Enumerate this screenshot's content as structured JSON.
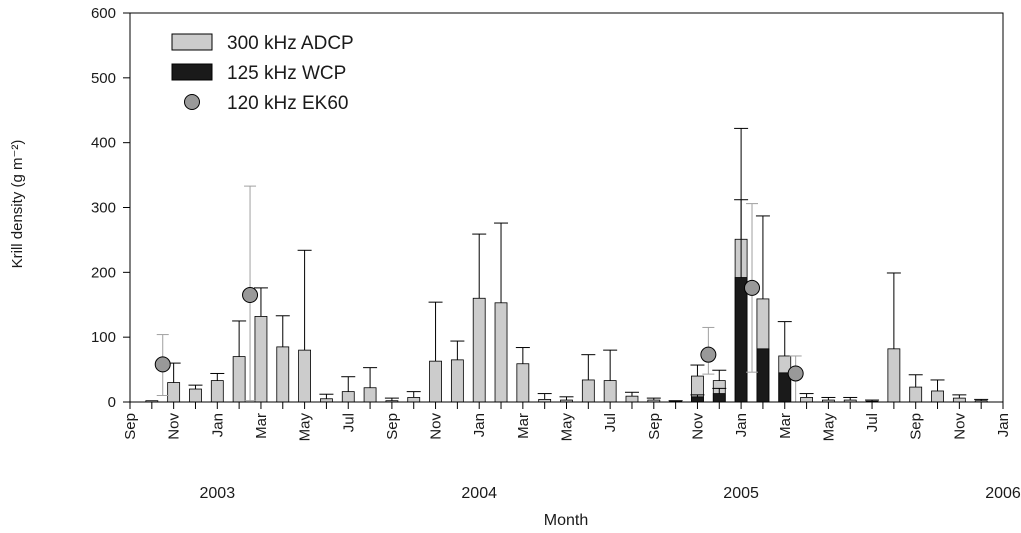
{
  "chart_data": {
    "type": "bar",
    "ylabel": "Krill density (g m⁻²)",
    "xlabel": "Month",
    "ylim": [
      0,
      600
    ],
    "yticks": [
      0,
      100,
      200,
      300,
      400,
      500,
      600
    ],
    "x_ticks": [
      {
        "slot": 0,
        "label": "Sep"
      },
      {
        "slot": 2,
        "label": "Nov"
      },
      {
        "slot": 4,
        "label": "Jan"
      },
      {
        "slot": 6,
        "label": "Mar"
      },
      {
        "slot": 8,
        "label": "May"
      },
      {
        "slot": 10,
        "label": "Jul"
      },
      {
        "slot": 12,
        "label": "Sep"
      },
      {
        "slot": 14,
        "label": "Nov"
      },
      {
        "slot": 16,
        "label": "Jan"
      },
      {
        "slot": 18,
        "label": "Mar"
      },
      {
        "slot": 20,
        "label": "May"
      },
      {
        "slot": 22,
        "label": "Jul"
      },
      {
        "slot": 24,
        "label": "Sep"
      },
      {
        "slot": 26,
        "label": "Nov"
      },
      {
        "slot": 28,
        "label": "Jan"
      },
      {
        "slot": 30,
        "label": "Mar"
      },
      {
        "slot": 32,
        "label": "May"
      },
      {
        "slot": 34,
        "label": "Jul"
      },
      {
        "slot": 36,
        "label": "Sep"
      },
      {
        "slot": 38,
        "label": "Nov"
      },
      {
        "slot": 40,
        "label": "Jan"
      }
    ],
    "years": [
      {
        "slot": 4,
        "label": "2003"
      },
      {
        "slot": 16,
        "label": "2004"
      },
      {
        "slot": 28,
        "label": "2005"
      },
      {
        "slot": 40,
        "label": "2006"
      }
    ],
    "legend": {
      "position": "top-left",
      "items": [
        {
          "label": "300 kHz ADCP",
          "kind": "bar",
          "color": "#cccccc"
        },
        {
          "label": "125 kHz WCP",
          "kind": "bar",
          "color": "#1a1a1a"
        },
        {
          "label": "120 kHz EK60",
          "kind": "circle",
          "color": "#999999"
        }
      ]
    },
    "series": [
      {
        "name": "300 kHz ADCP",
        "color": "#cccccc",
        "points": [
          {
            "slot": 1,
            "value": 2,
            "err": 0
          },
          {
            "slot": 2,
            "value": 30,
            "err": 30
          },
          {
            "slot": 3,
            "value": 20,
            "err": 6
          },
          {
            "slot": 4,
            "value": 33,
            "err": 11
          },
          {
            "slot": 5,
            "value": 70,
            "err": 55
          },
          {
            "slot": 6,
            "value": 132,
            "err": 44
          },
          {
            "slot": 7,
            "value": 85,
            "err": 48
          },
          {
            "slot": 8,
            "value": 80,
            "err": 154
          },
          {
            "slot": 9,
            "value": 5,
            "err": 7
          },
          {
            "slot": 10,
            "value": 16,
            "err": 23
          },
          {
            "slot": 11,
            "value": 22,
            "err": 31
          },
          {
            "slot": 12,
            "value": 2,
            "err": 4
          },
          {
            "slot": 13,
            "value": 7,
            "err": 9
          },
          {
            "slot": 14,
            "value": 63,
            "err": 91
          },
          {
            "slot": 15,
            "value": 65,
            "err": 29
          },
          {
            "slot": 16,
            "value": 160,
            "err": 99
          },
          {
            "slot": 17,
            "value": 153,
            "err": 123
          },
          {
            "slot": 18,
            "value": 59,
            "err": 25
          },
          {
            "slot": 19,
            "value": 4,
            "err": 9
          },
          {
            "slot": 20,
            "value": 3,
            "err": 5
          },
          {
            "slot": 21,
            "value": 34,
            "err": 39
          },
          {
            "slot": 22,
            "value": 33,
            "err": 47
          },
          {
            "slot": 23,
            "value": 9,
            "err": 6
          },
          {
            "slot": 24,
            "value": 3,
            "err": 3
          },
          {
            "slot": 25,
            "value": 1,
            "err": 1
          },
          {
            "slot": 26,
            "value": 40,
            "err": 17
          },
          {
            "slot": 27,
            "value": 33,
            "err": 16
          },
          {
            "slot": 28,
            "value": 251,
            "err": 171
          },
          {
            "slot": 29,
            "value": 159,
            "err": 128
          },
          {
            "slot": 30,
            "value": 71,
            "err": 53
          },
          {
            "slot": 31,
            "value": 7,
            "err": 6
          },
          {
            "slot": 32,
            "value": 3,
            "err": 4
          },
          {
            "slot": 33,
            "value": 3,
            "err": 4
          },
          {
            "slot": 34,
            "value": 1,
            "err": 2
          },
          {
            "slot": 35,
            "value": 82,
            "err": 117
          },
          {
            "slot": 36,
            "value": 23,
            "err": 19
          },
          {
            "slot": 37,
            "value": 17,
            "err": 17
          },
          {
            "slot": 38,
            "value": 6,
            "err": 5
          },
          {
            "slot": 39,
            "value": 2,
            "err": 2
          }
        ]
      },
      {
        "name": "125 kHz WCP",
        "color": "#1a1a1a",
        "points": [
          {
            "slot": 25,
            "value": 1,
            "err": 0
          },
          {
            "slot": 26,
            "value": 8,
            "err": 3
          },
          {
            "slot": 27,
            "value": 13,
            "err": 8
          },
          {
            "slot": 28,
            "value": 192,
            "err": 120
          },
          {
            "slot": 29,
            "value": 82,
            "err": 0
          },
          {
            "slot": 30,
            "value": 45,
            "err": 0
          }
        ]
      },
      {
        "name": "120 kHz EK60",
        "color": "#999999",
        "points": [
          {
            "slot": 1.5,
            "value": 58,
            "err_low": 48,
            "err_high": 46
          },
          {
            "slot": 5.5,
            "value": 165,
            "err_low": 163,
            "err_high": 168
          },
          {
            "slot": 26.5,
            "value": 73,
            "err_low": 30,
            "err_high": 42
          },
          {
            "slot": 28.5,
            "value": 176,
            "err_low": 130,
            "err_high": 130
          },
          {
            "slot": 30.5,
            "value": 44,
            "err_low": 44,
            "err_high": 27
          }
        ]
      }
    ]
  }
}
